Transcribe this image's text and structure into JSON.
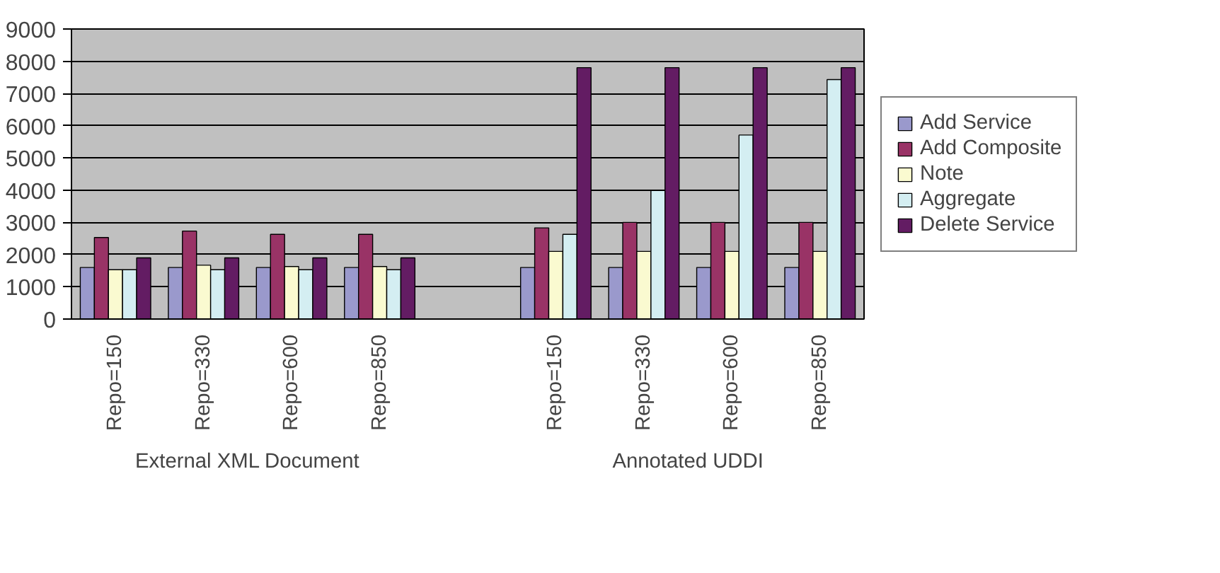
{
  "chart_data": {
    "type": "bar",
    "categories": [
      "Repo=150",
      "Repo=330",
      "Repo=600",
      "Repo=850",
      null,
      "Repo=150",
      "Repo=330",
      "Repo=600",
      "Repo=850"
    ],
    "series": [
      {
        "name": "Add Service",
        "color": "#9a99cc",
        "values": [
          1600,
          1600,
          1600,
          1600,
          null,
          1600,
          1600,
          1600,
          1600
        ]
      },
      {
        "name": "Add Composite",
        "color": "#993366",
        "values": [
          2530,
          2730,
          2630,
          2630,
          null,
          2830,
          3000,
          3000,
          3000
        ]
      },
      {
        "name": "Note",
        "color": "#fafad0",
        "values": [
          1530,
          1670,
          1630,
          1630,
          null,
          2100,
          2100,
          2100,
          2100
        ]
      },
      {
        "name": "Aggregate",
        "color": "#d4eef2",
        "values": [
          1530,
          1530,
          1530,
          1530,
          null,
          2630,
          3990,
          5710,
          7430
        ]
      },
      {
        "name": "Delete Service",
        "color": "#631c63",
        "values": [
          1900,
          1900,
          1900,
          1900,
          null,
          7800,
          7800,
          7800,
          7800
        ]
      }
    ],
    "annotations": [
      "External XML Document",
      "Annotated UDDI"
    ],
    "ylim": [
      0,
      9000
    ],
    "yticks": [
      0,
      1000,
      2000,
      3000,
      4000,
      5000,
      6000,
      7000,
      8000,
      9000
    ],
    "grid": "y",
    "legend": "right"
  }
}
